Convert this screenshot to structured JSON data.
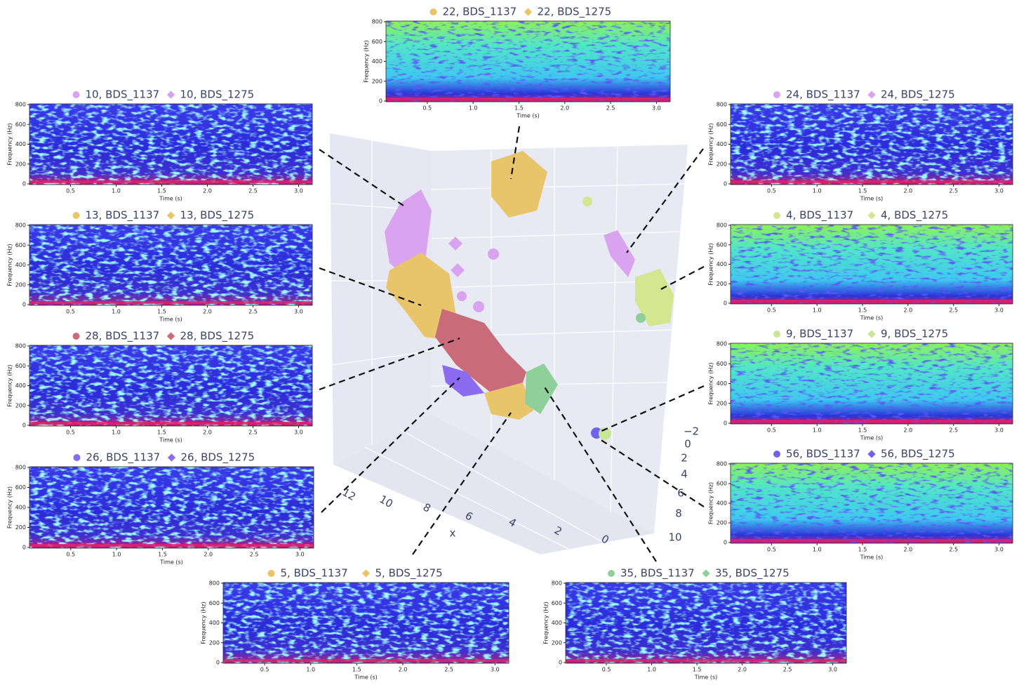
{
  "spectrograms": [
    {
      "legend": [
        {
          "label": "22, BDS_1137",
          "color": "#e8c46a",
          "marker": "circle"
        },
        {
          "label": "22, BDS_1275",
          "color": "#e8c46a",
          "marker": "diamond"
        }
      ],
      "y_label": "Frequency (Hz)",
      "x_label": "Time (s)",
      "yticks": [
        "0",
        "200",
        "400",
        "600",
        "800"
      ],
      "xticks": [
        "0.5",
        "1.0",
        "1.5",
        "2.0",
        "2.5",
        "3.0"
      ]
    },
    {
      "legend": [
        {
          "label": "10, BDS_1137",
          "color": "#d9a3ef",
          "marker": "circle"
        },
        {
          "label": "10, BDS_1275",
          "color": "#d9a3ef",
          "marker": "diamond"
        }
      ],
      "y_label": "Frequency (Hz)",
      "x_label": "Time (s)",
      "yticks": [
        "0",
        "200",
        "400",
        "600",
        "800"
      ],
      "xticks": [
        "0.5",
        "1.0",
        "1.5",
        "2.0",
        "2.5",
        "3.0"
      ]
    },
    {
      "legend": [
        {
          "label": "13, BDS_1137",
          "color": "#e8c46a",
          "marker": "circle"
        },
        {
          "label": "13, BDS_1275",
          "color": "#e8c46a",
          "marker": "diamond"
        }
      ],
      "y_label": "Frequency (Hz)",
      "x_label": "Time (s)",
      "yticks": [
        "0",
        "200",
        "400",
        "600",
        "800"
      ],
      "xticks": [
        "0.5",
        "1.0",
        "1.5",
        "2.0",
        "2.5",
        "3.0"
      ]
    },
    {
      "legend": [
        {
          "label": "28, BDS_1137",
          "color": "#c96b7b",
          "marker": "circle"
        },
        {
          "label": "28, BDS_1275",
          "color": "#c96b7b",
          "marker": "diamond"
        }
      ],
      "y_label": "Frequency (Hz)",
      "x_label": "Time (s)",
      "yticks": [
        "0",
        "200",
        "400",
        "600",
        "800"
      ],
      "xticks": [
        "0.5",
        "1.0",
        "1.5",
        "2.0",
        "2.5",
        "3.0"
      ]
    },
    {
      "legend": [
        {
          "label": "26, BDS_1137",
          "color": "#8b6cf0",
          "marker": "circle"
        },
        {
          "label": "26, BDS_1275",
          "color": "#8b6cf0",
          "marker": "diamond"
        }
      ],
      "y_label": "Frequency (Hz)",
      "x_label": "Time (s)",
      "yticks": [
        "0",
        "200",
        "400",
        "600",
        "800"
      ],
      "xticks": [
        "0.5",
        "1.0",
        "1.5",
        "2.0",
        "2.5",
        "3.0"
      ]
    },
    {
      "legend": [
        {
          "label": "24, BDS_1137",
          "color": "#d9a3ef",
          "marker": "circle"
        },
        {
          "label": "24, BDS_1275",
          "color": "#d9a3ef",
          "marker": "diamond"
        }
      ],
      "y_label": "Frequency (Hz)",
      "x_label": "Time (s)",
      "yticks": [
        "0",
        "200",
        "400",
        "600",
        "800"
      ],
      "xticks": [
        "0.5",
        "1.0",
        "1.5",
        "2.0",
        "2.5",
        "3.0"
      ]
    },
    {
      "legend": [
        {
          "label": "4, BDS_1137",
          "color": "#d4e68f",
          "marker": "circle"
        },
        {
          "label": "4, BDS_1275",
          "color": "#d4e68f",
          "marker": "diamond"
        }
      ],
      "y_label": "Frequency (Hz)",
      "x_label": "Time (s)",
      "yticks": [
        "0",
        "200",
        "400",
        "600",
        "800"
      ],
      "xticks": [
        "0.5",
        "1.0",
        "1.5",
        "2.0",
        "2.5",
        "3.0"
      ]
    },
    {
      "legend": [
        {
          "label": "9, BDS_1137",
          "color": "#c9e597",
          "marker": "circle"
        },
        {
          "label": "9, BDS_1275",
          "color": "#c9e597",
          "marker": "diamond"
        }
      ],
      "y_label": "Frequency (Hz)",
      "x_label": "Time (s)",
      "yticks": [
        "0",
        "200",
        "400",
        "600",
        "800"
      ],
      "xticks": [
        "0.5",
        "1.0",
        "1.5",
        "2.0",
        "2.5",
        "3.0"
      ]
    },
    {
      "legend": [
        {
          "label": "56, BDS_1137",
          "color": "#6f63ec",
          "marker": "circle"
        },
        {
          "label": "56, BDS_1275",
          "color": "#6f63ec",
          "marker": "diamond"
        }
      ],
      "y_label": "Frequency (Hz)",
      "x_label": "Time (s)",
      "yticks": [
        "0",
        "200",
        "400",
        "600",
        "800"
      ],
      "xticks": [
        "0.5",
        "1.0",
        "1.5",
        "2.0",
        "2.5",
        "3.0"
      ]
    },
    {
      "legend": [
        {
          "label": "5, BDS_1137",
          "color": "#e8c46a",
          "marker": "circle"
        },
        {
          "label": "5, BDS_1275",
          "color": "#e8c46a",
          "marker": "diamond"
        }
      ],
      "y_label": "Frequency (Hz)",
      "x_label": "Time (s)",
      "yticks": [
        "0",
        "200",
        "400",
        "600",
        "800"
      ],
      "xticks": [
        "0.5",
        "1.0",
        "1.5",
        "2.0",
        "2.5",
        "3.0"
      ]
    },
    {
      "legend": [
        {
          "label": "35, BDS_1137",
          "color": "#8fcf9a",
          "marker": "circle"
        },
        {
          "label": "35, BDS_1275",
          "color": "#8fcf9a",
          "marker": "diamond"
        }
      ],
      "y_label": "Frequency (Hz)",
      "x_label": "Time (s)",
      "yticks": [
        "0",
        "200",
        "400",
        "600",
        "800"
      ],
      "xticks": [
        "0.5",
        "1.0",
        "1.5",
        "2.0",
        "2.5",
        "3.0"
      ]
    }
  ],
  "scatter3d": {
    "x_label": "x",
    "x_ticks": [
      "12",
      "10",
      "8",
      "6",
      "4",
      "2",
      "0"
    ],
    "y_ticks": [
      "−2",
      "0",
      "2",
      "4",
      "6",
      "8",
      "10"
    ]
  }
}
